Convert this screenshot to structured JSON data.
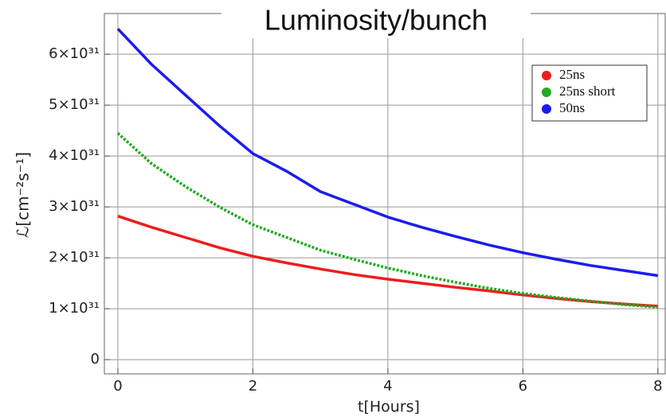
{
  "chart_data": {
    "type": "line",
    "title": "Luminosity/bunch",
    "x_label": "t[Hours]",
    "y_label": "ℒ[cm⁻²s⁻¹]",
    "x": [
      0,
      0.5,
      1,
      1.5,
      2,
      2.5,
      3,
      3.5,
      4,
      4.5,
      5,
      5.5,
      6,
      6.5,
      7,
      7.5,
      8
    ],
    "series": [
      {
        "name": "25ns",
        "color": "#ee1c1c",
        "style": "solid",
        "values": [
          2.82e+31,
          2.6e+31,
          2.4e+31,
          2.2e+31,
          2.03e+31,
          1.9e+31,
          1.78e+31,
          1.67e+31,
          1.58e+31,
          1.5e+31,
          1.42e+31,
          1.35e+31,
          1.27e+31,
          1.2e+31,
          1.14e+31,
          1.09e+31,
          1.05e+31
        ]
      },
      {
        "name": "25ns short",
        "color": "#22aa22",
        "style": "dotted",
        "values": [
          4.45e+31,
          3.85e+31,
          3.4e+31,
          3e+31,
          2.65e+31,
          2.4e+31,
          2.15e+31,
          1.97e+31,
          1.8e+31,
          1.65e+31,
          1.52e+31,
          1.4e+31,
          1.3e+31,
          1.22e+31,
          1.15e+31,
          1.08e+31,
          1.03e+31
        ]
      },
      {
        "name": "50ns",
        "color": "#1c1cee",
        "style": "solid",
        "values": [
          6.5e+31,
          5.8e+31,
          5.2e+31,
          4.6e+31,
          4.05e+31,
          3.7e+31,
          3.3e+31,
          3.05e+31,
          2.8e+31,
          2.6e+31,
          2.42e+31,
          2.25e+31,
          2.1e+31,
          1.97e+31,
          1.85e+31,
          1.75e+31,
          1.65e+31
        ]
      }
    ],
    "xlim": [
      -0.2,
      8.12
    ],
    "xticks": [
      0,
      2,
      4,
      6,
      8
    ],
    "ylim": [
      -2.8e+30,
      6.8e+31
    ],
    "yticks": [
      0,
      {
        "value": 1e+31,
        "label": "1×10³¹"
      },
      {
        "value": 2e+31,
        "label": "2×10³¹"
      },
      {
        "value": 3e+31,
        "label": "3×10³¹"
      },
      {
        "value": 4e+31,
        "label": "4×10³¹"
      },
      {
        "value": 5e+31,
        "label": "5×10³¹"
      },
      {
        "value": 6e+31,
        "label": "6×10³¹"
      }
    ],
    "grid": true,
    "legend": "upper right"
  }
}
